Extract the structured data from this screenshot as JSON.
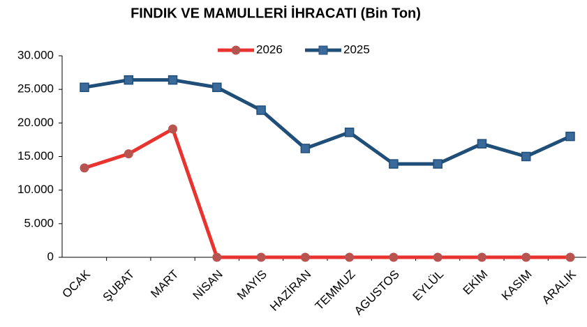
{
  "chart_data": {
    "type": "line",
    "title": "FINDIK VE MAMULLERİ İHRACATI (Bin Ton)",
    "categories": [
      "OCAK",
      "ŞUBAT",
      "MART",
      "NİSAN",
      "MAYIS",
      "HAZİRAN",
      "TEMMUZ",
      "AGUSTOS",
      "EYLÜL",
      "EKİM",
      "KASIM",
      "ARALIK"
    ],
    "series": [
      {
        "name": "2026",
        "color": "#e8332f",
        "marker_color": "#b85450",
        "marker": "circle",
        "values": [
          13300,
          15400,
          19100,
          0,
          0,
          0,
          0,
          0,
          0,
          0,
          0,
          0
        ]
      },
      {
        "name": "2025",
        "color": "#1f4e79",
        "marker_color": "#3a6a9a",
        "marker": "square",
        "values": [
          25300,
          26400,
          26400,
          25300,
          21900,
          16200,
          18600,
          13900,
          13900,
          16900,
          15000,
          18000
        ]
      }
    ],
    "ylim": [
      0,
      30000
    ],
    "yticks": [
      0,
      {
        "value": 5000,
        "label": "5.000"
      },
      {
        "value": 10000,
        "label": "10.000"
      },
      {
        "value": 15000,
        "label": "15.000"
      },
      {
        "value": 20000,
        "label": "20.000"
      },
      {
        "value": 25000,
        "label": "25.000"
      },
      {
        "value": 30000,
        "label": "30.000"
      }
    ],
    "grid": false,
    "legend": "top"
  }
}
